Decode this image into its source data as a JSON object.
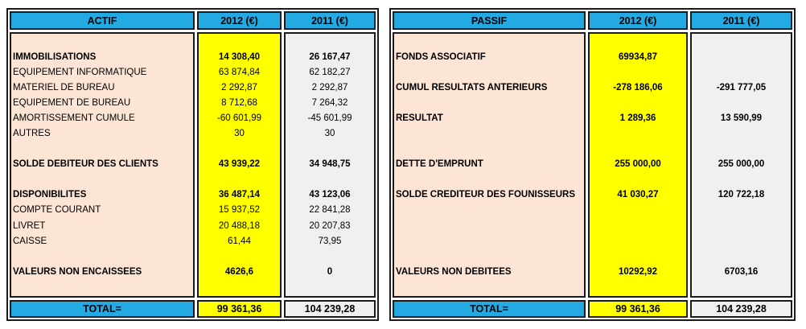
{
  "colors": {
    "header_blue": "#24AAE2",
    "label_column_peach": "#FCE5D5",
    "column_2012_yellow": "#FFFF00",
    "column_2011_gray": "#F0F0F0",
    "border_black": "#1B1B1B"
  },
  "tables": [
    {
      "id": "actif",
      "header": {
        "title": "ACTIF",
        "col2012": "2012 (€)",
        "col2011": "2011 (€)"
      },
      "rows": [
        {
          "label": "",
          "v2012": "",
          "v2011": "",
          "bold": false
        },
        {
          "label": "IMMOBILISATIONS",
          "v2012": "14 308,40",
          "v2011": "26 167,47",
          "bold": true
        },
        {
          "label": "EQUIPEMENT INFORMATIQUE",
          "v2012": "63 874,84",
          "v2011": "62 182,27",
          "bold": false
        },
        {
          "label": "MATERIEL DE BUREAU",
          "v2012": "2 292,87",
          "v2011": "2 292,87",
          "bold": false
        },
        {
          "label": "EQUIPEMENT DE BUREAU",
          "v2012": "8 712,68",
          "v2011": "7 264,32",
          "bold": false
        },
        {
          "label": "AMORTISSEMENT CUMULE",
          "v2012": "-60 601,99",
          "v2011": "-45 601,99",
          "bold": false
        },
        {
          "label": "AUTRES",
          "v2012": "30",
          "v2011": "30",
          "bold": false
        },
        {
          "label": "",
          "v2012": "",
          "v2011": "",
          "bold": false
        },
        {
          "label": "SOLDE DEBITEUR DES CLIENTS",
          "v2012": "43 939,22",
          "v2011": "34 948,75",
          "bold": true
        },
        {
          "label": "",
          "v2012": "",
          "v2011": "",
          "bold": false
        },
        {
          "label": "DISPONIBILITES",
          "v2012": "36 487,14",
          "v2011": "43 123,06",
          "bold": true
        },
        {
          "label": "COMPTE COURANT",
          "v2012": "15 937,52",
          "v2011": "22 841,28",
          "bold": false
        },
        {
          "label": "LIVRET",
          "v2012": "20 488,18",
          "v2011": "20 207,83",
          "bold": false
        },
        {
          "label": "CAISSE",
          "v2012": "61,44",
          "v2011": "73,95",
          "bold": false
        },
        {
          "label": "",
          "v2012": "",
          "v2011": "",
          "bold": false
        },
        {
          "label": "VALEURS NON ENCAISSEES",
          "v2012": "4626,6",
          "v2011": "0",
          "bold": true
        },
        {
          "label": "",
          "v2012": "",
          "v2011": "",
          "bold": false
        }
      ],
      "total": {
        "label": "TOTAL=",
        "v2012": "99 361,36",
        "v2011": "104 239,28"
      }
    },
    {
      "id": "passif",
      "header": {
        "title": "PASSIF",
        "col2012": "2012 (€)",
        "col2011": "2011 (€)"
      },
      "rows": [
        {
          "label": "",
          "v2012": "",
          "v2011": "",
          "bold": false
        },
        {
          "label": "FONDS ASSOCIATIF",
          "v2012": "69934,87",
          "v2011": "",
          "bold": true
        },
        {
          "label": "",
          "v2012": "",
          "v2011": "",
          "bold": false
        },
        {
          "label": "CUMUL RESULTATS ANTERIEURS",
          "v2012": "-278 186,06",
          "v2011": "-291 777,05",
          "bold": true
        },
        {
          "label": "",
          "v2012": "",
          "v2011": "",
          "bold": false
        },
        {
          "label": "RESULTAT",
          "v2012": "1 289,36",
          "v2011": "13 590,99",
          "bold": true
        },
        {
          "label": "",
          "v2012": "",
          "v2011": "",
          "bold": false
        },
        {
          "label": "",
          "v2012": "",
          "v2011": "",
          "bold": false
        },
        {
          "label": "DETTE D'EMPRUNT",
          "v2012": "255 000,00",
          "v2011": "255 000,00",
          "bold": true
        },
        {
          "label": "",
          "v2012": "",
          "v2011": "",
          "bold": false
        },
        {
          "label": "SOLDE CREDITEUR DES FOUNISSEURS",
          "v2012": "41 030,27",
          "v2011": "120 722,18",
          "bold": true
        },
        {
          "label": "",
          "v2012": "",
          "v2011": "",
          "bold": false
        },
        {
          "label": "",
          "v2012": "",
          "v2011": "",
          "bold": false
        },
        {
          "label": "",
          "v2012": "",
          "v2011": "",
          "bold": false
        },
        {
          "label": "",
          "v2012": "",
          "v2011": "",
          "bold": false
        },
        {
          "label": "VALEURS NON DEBITEES",
          "v2012": "10292,92",
          "v2011": "6703,16",
          "bold": true
        },
        {
          "label": "",
          "v2012": "",
          "v2011": "",
          "bold": false
        }
      ],
      "total": {
        "label": "TOTAL=",
        "v2012": "99 361,36",
        "v2011": "104 239,28"
      }
    }
  ]
}
